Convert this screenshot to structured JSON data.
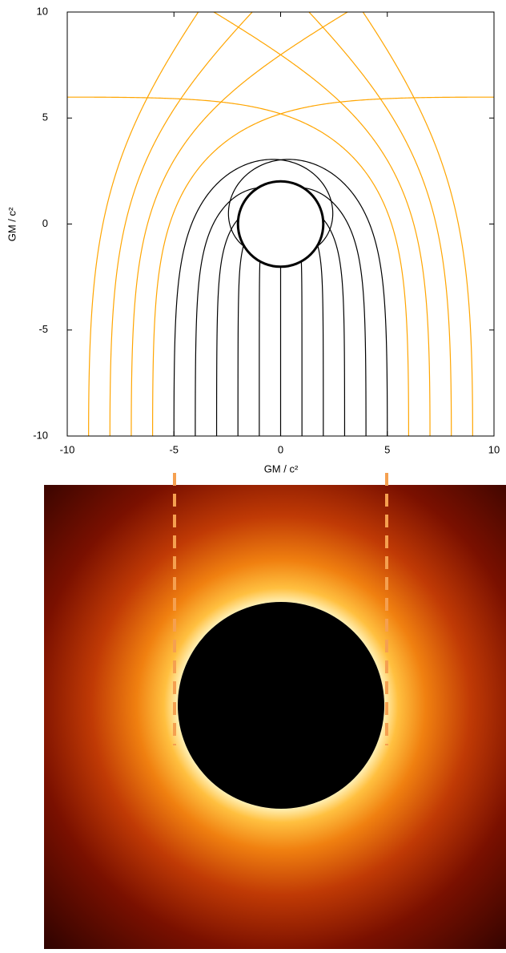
{
  "chart_data": {
    "type": "rays",
    "xlabel": "GM / c²",
    "ylabel": "GM / c²",
    "xlim": [
      -10,
      10
    ],
    "ylim": [
      -10,
      10
    ],
    "xticks": [
      -10,
      -5,
      0,
      5,
      10
    ],
    "yticks": [
      -10,
      -5,
      0,
      5,
      10
    ],
    "horizon_radius": 2,
    "series": [
      {
        "color": "#000000",
        "x": [
          -5,
          -4,
          -3,
          -2,
          -1,
          0,
          1,
          2,
          3,
          4,
          5
        ]
      },
      {
        "color": "#ffa500",
        "x": [
          -9,
          -8,
          -7,
          -6,
          6,
          7,
          8,
          9
        ]
      }
    ]
  }
}
